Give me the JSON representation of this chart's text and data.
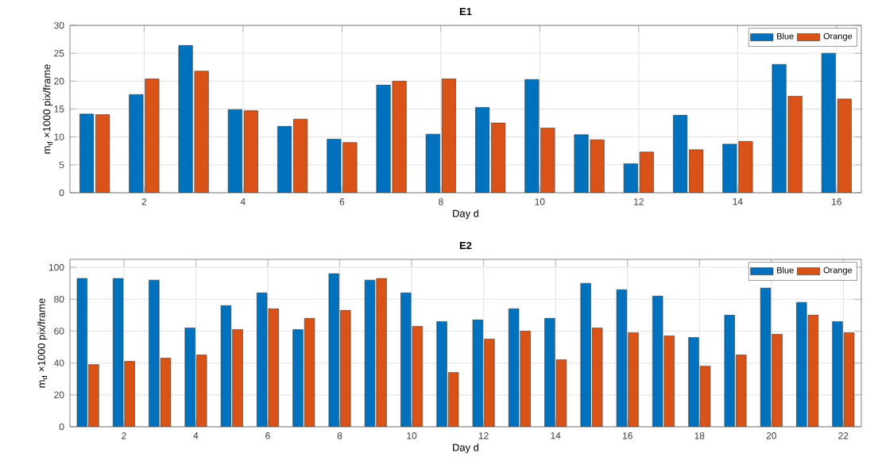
{
  "chart_data": [
    {
      "type": "bar",
      "title": "E1",
      "xlabel": "Day d",
      "ylabel": "m$_{d}$ ×1000 pix/frame",
      "x": [
        1,
        2,
        3,
        4,
        5,
        6,
        7,
        8,
        9,
        10,
        11,
        12,
        13,
        14,
        15,
        16
      ],
      "xlim": [
        0.5,
        16.5
      ],
      "xticks": [
        2,
        4,
        6,
        8,
        10,
        12,
        14,
        16
      ],
      "ylim": [
        0,
        30
      ],
      "yticks": [
        0,
        5,
        10,
        15,
        20,
        25,
        30
      ],
      "grid": true,
      "legend": "top right",
      "series": [
        {
          "name": "Blue",
          "color": "#0072bd",
          "values": [
            14.1,
            17.6,
            26.4,
            14.9,
            11.9,
            9.6,
            19.3,
            10.5,
            15.3,
            20.3,
            10.4,
            5.2,
            13.9,
            8.7,
            23.0,
            25.0
          ]
        },
        {
          "name": "Orange",
          "color": "#d95319",
          "values": [
            14.0,
            20.4,
            21.8,
            14.7,
            13.2,
            9.0,
            20.0,
            20.4,
            12.5,
            11.6,
            9.5,
            7.3,
            7.7,
            9.2,
            17.3,
            16.8
          ]
        }
      ]
    },
    {
      "type": "bar",
      "title": "E2",
      "xlabel": "Day d",
      "ylabel": "m$_{d}$ ×1000 pix/frame",
      "x": [
        1,
        2,
        3,
        4,
        5,
        6,
        7,
        8,
        9,
        10,
        11,
        12,
        13,
        14,
        15,
        16,
        17,
        18,
        19,
        20,
        21,
        22
      ],
      "xlim": [
        0.5,
        22.5
      ],
      "xticks": [
        2,
        4,
        6,
        8,
        10,
        12,
        14,
        16,
        18,
        20,
        22
      ],
      "ylim": [
        0,
        105
      ],
      "yticks": [
        0,
        20,
        40,
        60,
        80,
        100
      ],
      "grid": true,
      "legend": "top right",
      "series": [
        {
          "name": "Blue",
          "color": "#0072bd",
          "values": [
            93,
            93,
            92,
            62,
            76,
            84,
            61,
            96,
            92,
            84,
            66,
            67,
            74,
            68,
            90,
            86,
            82,
            56,
            70,
            87,
            78,
            66
          ]
        },
        {
          "name": "Orange",
          "color": "#d95319",
          "values": [
            39,
            41,
            43,
            45,
            61,
            74,
            68,
            73,
            93,
            63,
            34,
            55,
            60,
            42,
            62,
            59,
            57,
            38,
            45,
            58,
            70,
            59
          ]
        }
      ]
    }
  ]
}
